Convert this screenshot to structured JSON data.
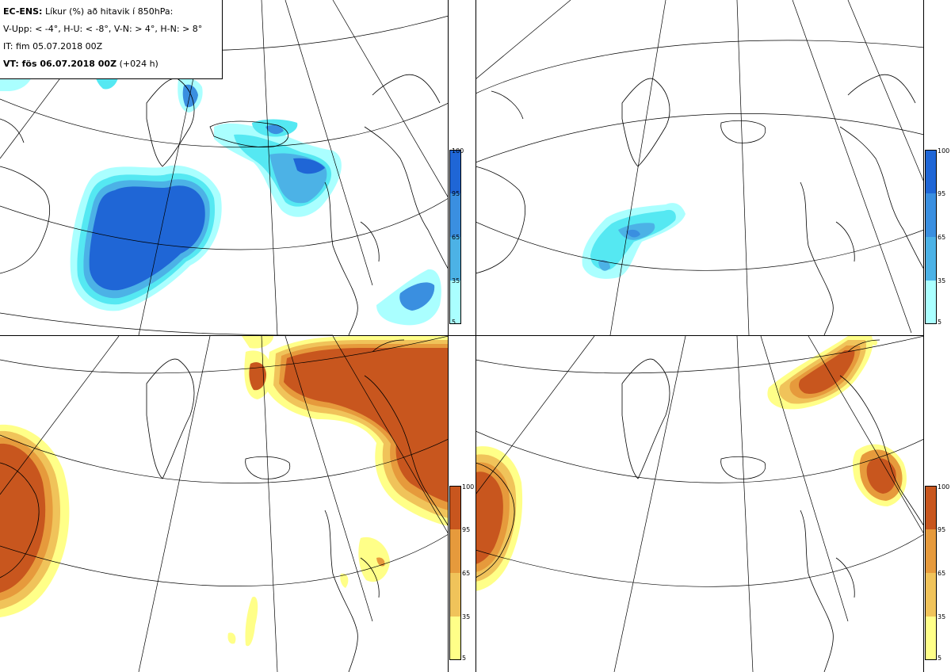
{
  "header": {
    "line1_bold": "EC-ENS:",
    "line1_rest": " Líkur (%) að hitavik í 850hPa:",
    "line2": "V-Upp: < -4°, H-U: < -8°, V-N: > 4°, H-N: > 8°",
    "line3": "IT: fim 05.07.2018 00Z",
    "line4_bold": "VT: fös 06.07.2018 00Z",
    "line4_rest": " (+024 h)"
  },
  "colors": {
    "cold": [
      "#aaffff",
      "#55e8f2",
      "#4cb2e6",
      "#3a8fe0",
      "#1f66d6"
    ],
    "warm": [
      "#ffff88",
      "#f5e87a",
      "#f0c35a",
      "#e69a3c",
      "#c8561e"
    ],
    "coast": "#000000",
    "grid": "#000000"
  },
  "colorbar": {
    "ticks": [
      "100",
      "95",
      "65",
      "35",
      "5"
    ]
  },
  "panels": [
    {
      "id": "v-upp",
      "scheme": "cold"
    },
    {
      "id": "h-u",
      "scheme": "cold"
    },
    {
      "id": "v-n",
      "scheme": "warm"
    },
    {
      "id": "h-n",
      "scheme": "warm"
    }
  ]
}
